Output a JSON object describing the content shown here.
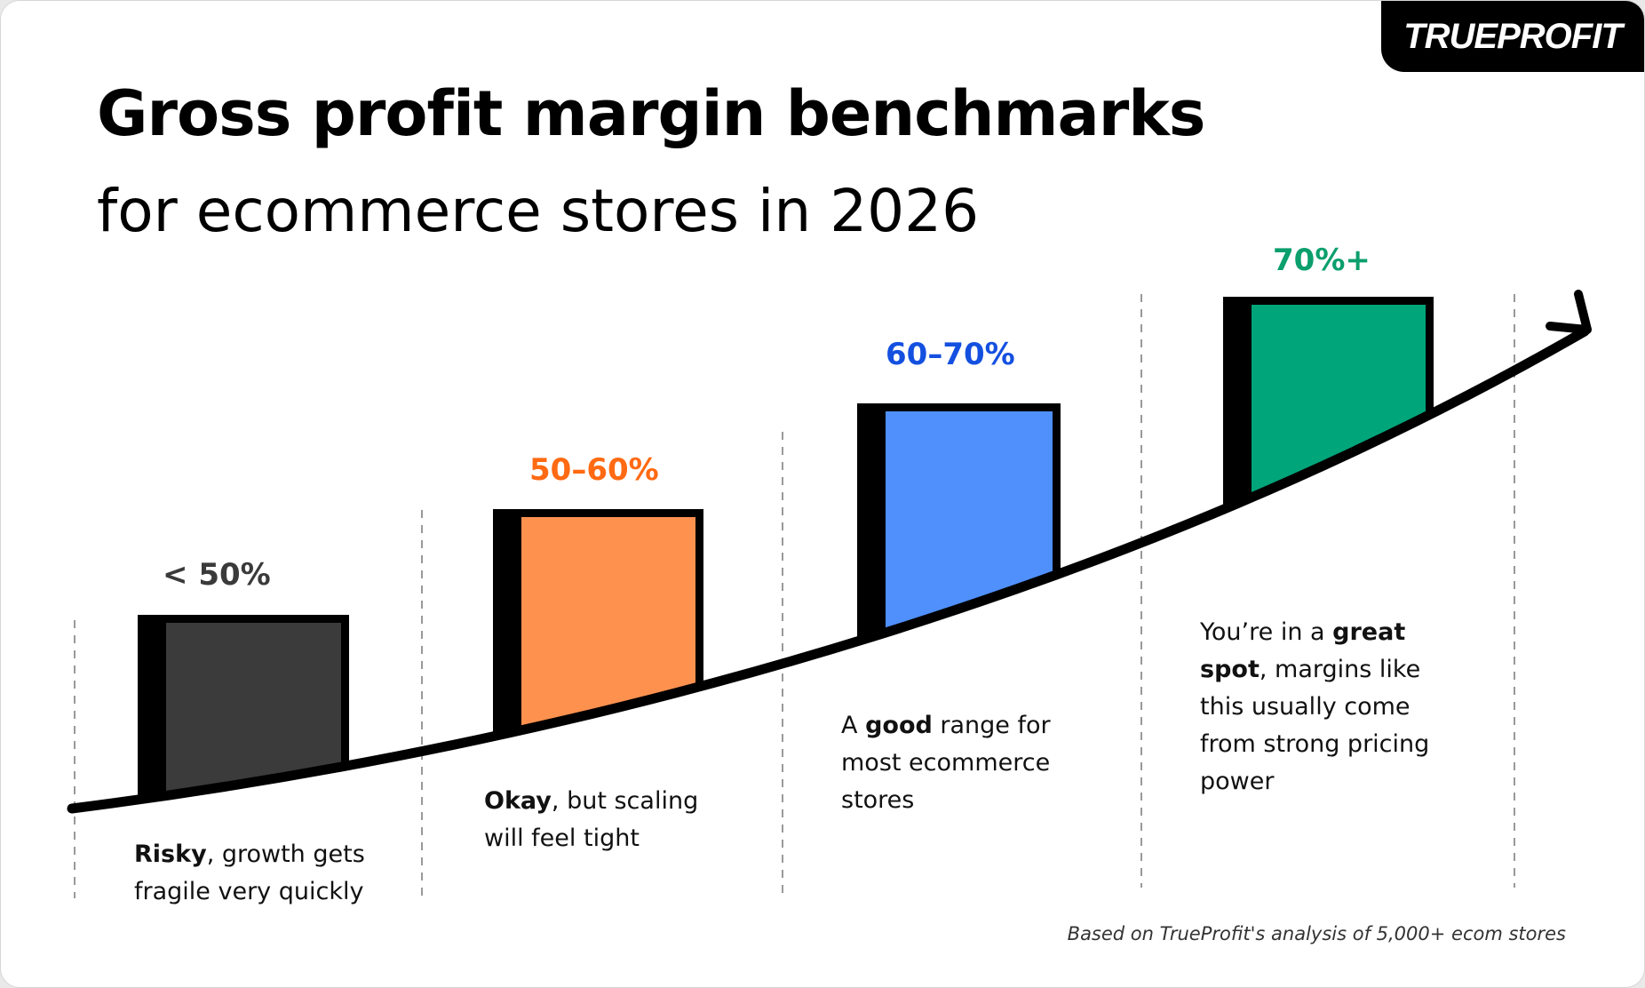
{
  "logo": {
    "text": "TRUEPROFIT",
    "accent": "#1fc28c"
  },
  "header": {
    "title": "Gross profit margin benchmarks",
    "subtitle": "for ecommerce stores in 2026"
  },
  "tiers": [
    {
      "label": "< 50%",
      "color": "#3b3b3b",
      "label_color": "#3a3a3a",
      "bold": "Risky",
      "rest": ", growth gets fragile very quickly"
    },
    {
      "label": "50–60%",
      "color": "#ff914f",
      "label_color": "#ff6a13",
      "bold": "Okay",
      "rest": ", but scaling will feel tight"
    },
    {
      "label": "60–70%",
      "color": "#4f90fd",
      "label_color": "#1450e0",
      "pre": "A ",
      "bold": "good",
      "rest": " range for most ecommerce stores"
    },
    {
      "label": "70%+",
      "color": "#00a57a",
      "label_color": "#0a9f6c",
      "pre": "You’re in a ",
      "bold": "great spot",
      "rest": ", margins like this usually come from strong pricing power"
    }
  ],
  "footnote": "Based on TrueProfit's analysis of 5,000+ ecom stores"
}
